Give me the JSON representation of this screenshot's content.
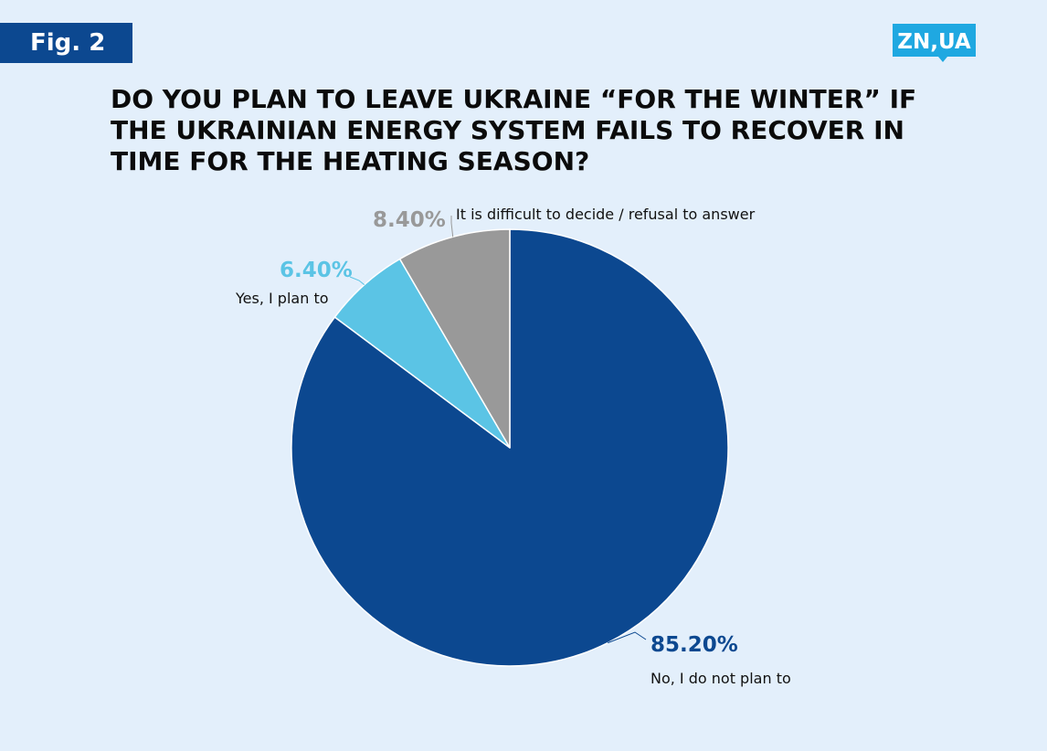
{
  "figure_label": "Fig. 2",
  "logo_text": "ZN,UA",
  "colors": {
    "background": "#e3effb",
    "badge": "#0c4890",
    "logo": "#1fa8e1",
    "no": "#0c4890",
    "yes": "#5bc4e5",
    "difficult": "#999999"
  },
  "chart_data": {
    "type": "pie",
    "title": "DO YOU PLAN TO LEAVE UKRAINE “FOR THE WINTER” IF THE UKRAINIAN ENERGY SYSTEM FAILS TO RECOVER IN TIME FOR THE HEATING SEASON?",
    "start_angle_deg": 0,
    "direction": "clockwise",
    "slices": [
      {
        "label": "No, I do not plan to",
        "value": 85.2,
        "value_label": "85.20%",
        "color": "#0c4890"
      },
      {
        "label": "Yes, I plan to",
        "value": 6.4,
        "value_label": "6.40%",
        "color": "#5bc4e5"
      },
      {
        "label": "It is difficult to decide / refusal to answer",
        "value": 8.4,
        "value_label": "8.40%",
        "color": "#999999"
      }
    ]
  }
}
